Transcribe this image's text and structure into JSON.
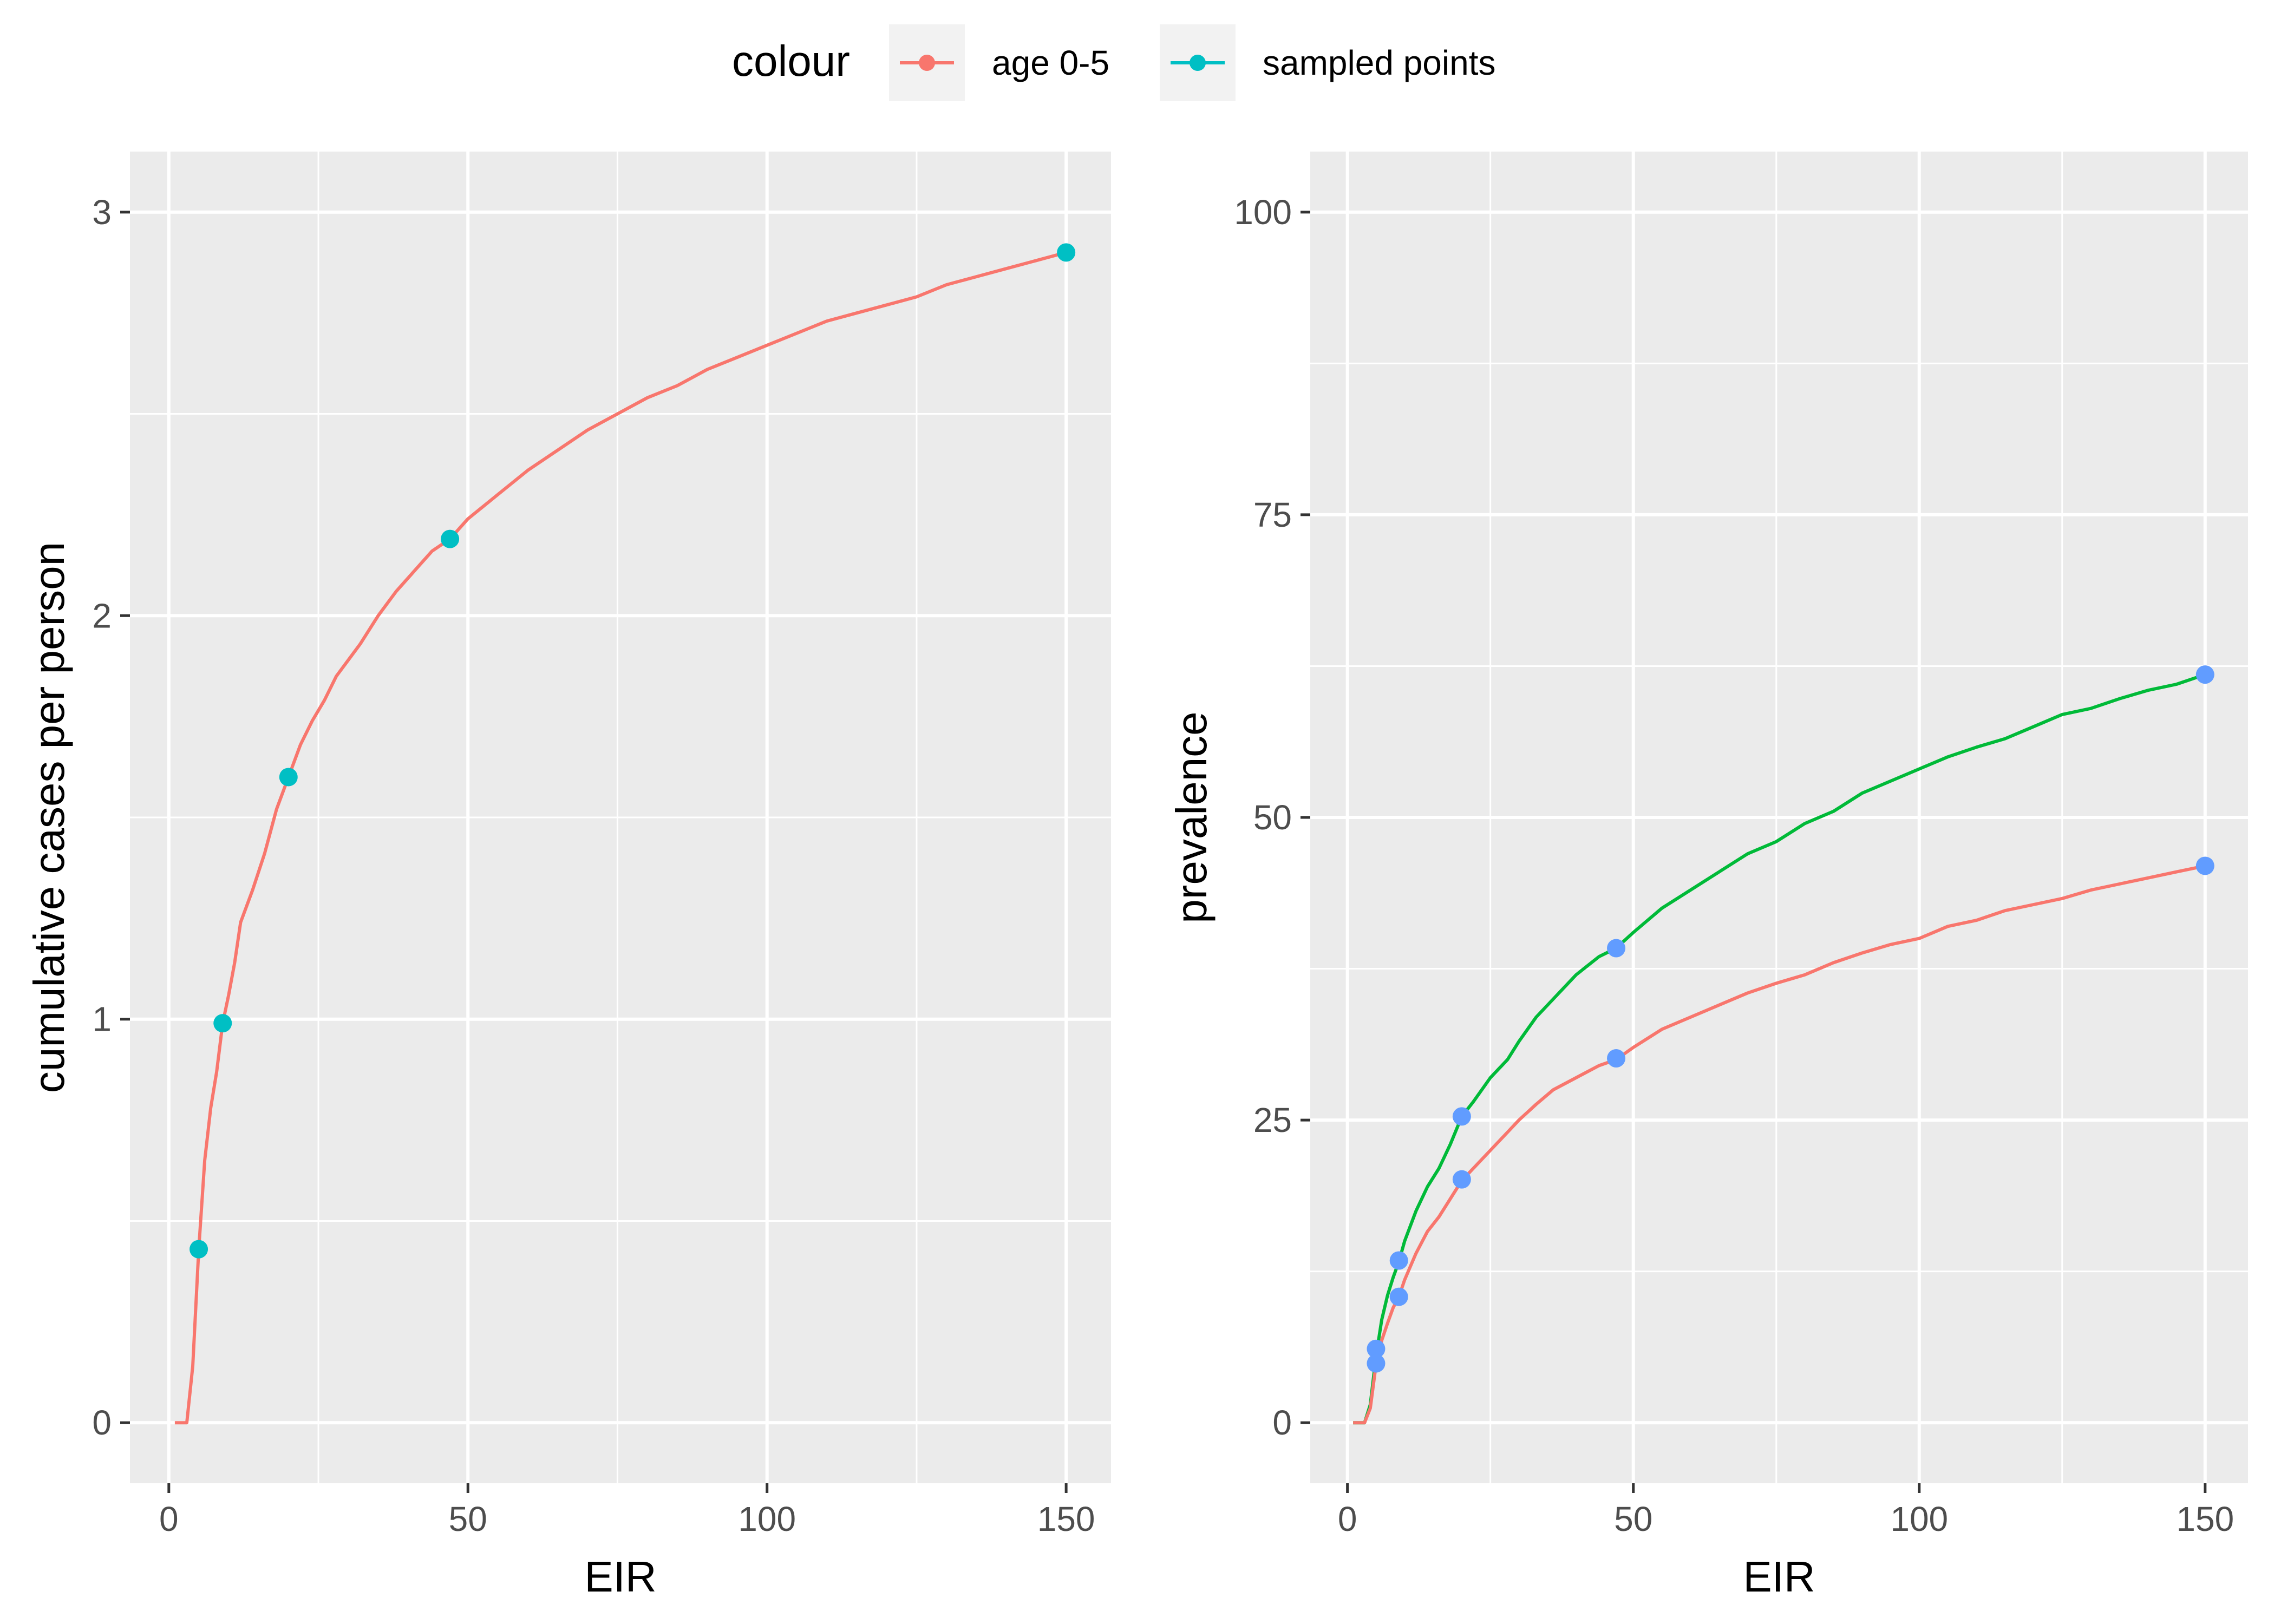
{
  "legend": {
    "title": "colour",
    "entries": [
      {
        "label": "age 0-5",
        "color": "#F8766D"
      },
      {
        "label": "sampled points",
        "color": "#00BFC4"
      }
    ]
  },
  "chart_data": [
    {
      "type": "line",
      "xlabel": "EIR",
      "ylabel": "cumulative cases per person",
      "xlim": [
        -6.5,
        157.5
      ],
      "ylim": [
        -0.15,
        3.15
      ],
      "xticks": [
        0,
        50,
        100,
        150
      ],
      "yticks": [
        0,
        1,
        2,
        3
      ],
      "grid": true,
      "series": [
        {
          "name": "age 0-5",
          "color": "#F8766D",
          "x": [
            1,
            3,
            4,
            5,
            6,
            7,
            8,
            9,
            10,
            11,
            12,
            14,
            16,
            18,
            20,
            22,
            24,
            26,
            28,
            30,
            32,
            35,
            38,
            41,
            44,
            47,
            50,
            55,
            60,
            65,
            70,
            75,
            80,
            85,
            90,
            95,
            100,
            105,
            110,
            115,
            120,
            125,
            130,
            135,
            140,
            145,
            150
          ],
          "values": [
            0,
            0,
            0.14,
            0.43,
            0.65,
            0.78,
            0.87,
            0.99,
            1.06,
            1.14,
            1.24,
            1.32,
            1.41,
            1.52,
            1.6,
            1.68,
            1.74,
            1.79,
            1.85,
            1.89,
            1.93,
            2.0,
            2.06,
            2.11,
            2.16,
            2.19,
            2.24,
            2.3,
            2.36,
            2.41,
            2.46,
            2.5,
            2.54,
            2.57,
            2.61,
            2.64,
            2.67,
            2.7,
            2.73,
            2.75,
            2.77,
            2.79,
            2.82,
            2.84,
            2.86,
            2.88,
            2.9
          ]
        },
        {
          "name": "sampled points",
          "color": "#00BFC4",
          "mode": "markers",
          "x": [
            5,
            9,
            20,
            47,
            150
          ],
          "values": [
            0.43,
            0.99,
            1.6,
            2.19,
            2.9
          ]
        }
      ]
    },
    {
      "type": "line",
      "xlabel": "EIR",
      "ylabel": "prevalence",
      "xlim": [
        -6.5,
        157.5
      ],
      "ylim": [
        -5,
        105
      ],
      "xticks": [
        0,
        50,
        100,
        150
      ],
      "yticks": [
        0,
        25,
        50,
        75,
        100
      ],
      "grid": true,
      "series": [
        {
          "color": "#00BA38",
          "x": [
            1,
            3,
            4,
            5,
            6,
            7,
            8,
            9,
            10,
            12,
            14,
            16,
            18,
            20,
            22,
            25,
            28,
            30,
            33,
            36,
            40,
            44,
            47,
            50,
            55,
            60,
            65,
            70,
            75,
            80,
            85,
            90,
            95,
            100,
            105,
            110,
            115,
            120,
            125,
            130,
            135,
            140,
            145,
            150
          ],
          "values": [
            0,
            0,
            1.5,
            5.5,
            8.5,
            10.5,
            12,
            13.3,
            15,
            17.5,
            19.5,
            21,
            23,
            25.3,
            26.5,
            28.5,
            30,
            31.5,
            33.5,
            35,
            37,
            38.5,
            39.2,
            40.5,
            42.5,
            44,
            45.5,
            47,
            48,
            49.5,
            50.5,
            52,
            53,
            54,
            55,
            55.8,
            56.5,
            57.5,
            58.5,
            59,
            59.8,
            60.5,
            61,
            61.8
          ]
        },
        {
          "color": "#F8766D",
          "x": [
            1,
            3,
            4,
            5,
            6,
            7,
            8,
            9,
            10,
            12,
            14,
            16,
            18,
            20,
            22,
            25,
            28,
            30,
            33,
            36,
            40,
            44,
            47,
            50,
            55,
            60,
            65,
            70,
            75,
            80,
            85,
            90,
            95,
            100,
            105,
            110,
            115,
            120,
            125,
            130,
            135,
            140,
            145,
            150
          ],
          "values": [
            0,
            0,
            1.2,
            4.8,
            6.8,
            8.2,
            9.5,
            10.4,
            11.8,
            14,
            15.8,
            17,
            18.5,
            20,
            21,
            22.5,
            24,
            25,
            26.3,
            27.5,
            28.5,
            29.5,
            30,
            31,
            32.5,
            33.5,
            34.5,
            35.5,
            36.3,
            37,
            38,
            38.8,
            39.5,
            40,
            41,
            41.5,
            42.3,
            42.8,
            43.3,
            44,
            44.5,
            45,
            45.5,
            46
          ]
        },
        {
          "color": "#619CFF",
          "mode": "markers",
          "x": [
            5,
            9,
            20,
            47,
            150
          ],
          "values": [
            6.1,
            13.4,
            25.3,
            39.2,
            61.8
          ]
        },
        {
          "color": "#619CFF",
          "mode": "markers",
          "x": [
            5,
            9,
            20,
            47,
            150
          ],
          "values": [
            4.9,
            10.4,
            20.1,
            30.1,
            46.0
          ]
        }
      ]
    }
  ]
}
